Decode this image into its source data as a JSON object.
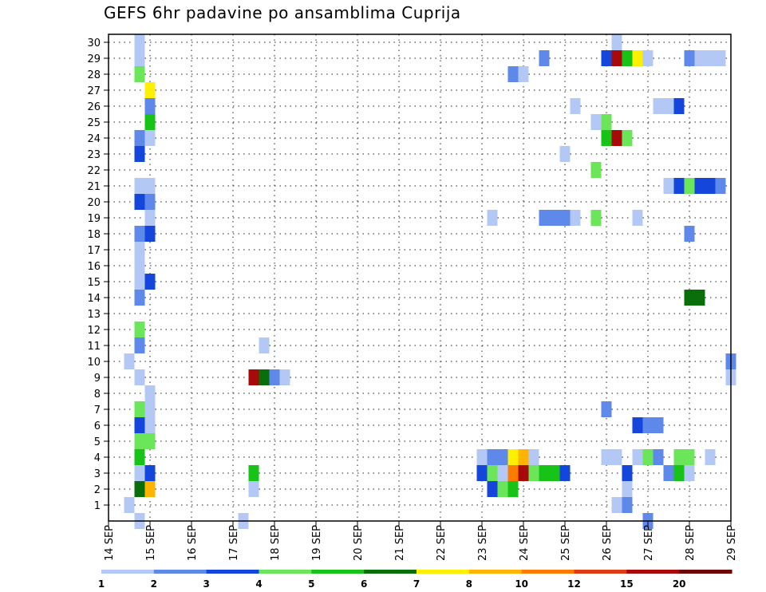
{
  "chart_data": {
    "type": "heatmap",
    "title": "GEFS 6hr padavine po ansamblima Cuprija",
    "y_ticks": [
      "1",
      "2",
      "3",
      "4",
      "5",
      "6",
      "7",
      "8",
      "9",
      "10",
      "11",
      "12",
      "13",
      "14",
      "15",
      "16",
      "17",
      "18",
      "19",
      "20",
      "21",
      "22",
      "23",
      "24",
      "25",
      "26",
      "27",
      "28",
      "29",
      "30"
    ],
    "x_ticks": [
      "14 SEP",
      "15 SEP",
      "16 SEP",
      "17 SEP",
      "18 SEP",
      "19 SEP",
      "20 SEP",
      "21 SEP",
      "22 SEP",
      "23 SEP",
      "24 SEP",
      "25 SEP",
      "26 SEP",
      "27 SEP",
      "28 SEP",
      "29 SEP"
    ],
    "x_range_days": [
      14,
      29
    ],
    "y_range": [
      0,
      30.5
    ],
    "grid": true,
    "colorbar": {
      "labels": [
        "1",
        "2",
        "3",
        "4",
        "5",
        "6",
        "7",
        "8",
        "10",
        "12",
        "15",
        "20"
      ],
      "colors": [
        "#b4c8f5",
        "#5f88eb",
        "#1446dc",
        "#6be55a",
        "#17c317",
        "#0a6e0a",
        "#ffef00",
        "#ffb400",
        "#ff7a00",
        "#dc3c14",
        "#a80a0a",
        "#6e0000"
      ]
    },
    "cells": [
      [
        14.75,
        0,
        0
      ],
      [
        14.5,
        1,
        0
      ],
      [
        15.0,
        2,
        7
      ],
      [
        14.75,
        2,
        5
      ],
      [
        14.75,
        3,
        0
      ],
      [
        15.0,
        3,
        2
      ],
      [
        14.75,
        4,
        4
      ],
      [
        14.75,
        5,
        3
      ],
      [
        15.0,
        5,
        3
      ],
      [
        14.75,
        6,
        2
      ],
      [
        15.0,
        6,
        0
      ],
      [
        14.75,
        7,
        3
      ],
      [
        15.0,
        7,
        0
      ],
      [
        15.0,
        8,
        0
      ],
      [
        14.75,
        9,
        0
      ],
      [
        14.5,
        10,
        0
      ],
      [
        14.75,
        11,
        1
      ],
      [
        14.75,
        12,
        3
      ],
      [
        14.75,
        14,
        1
      ],
      [
        14.75,
        15,
        0
      ],
      [
        15.0,
        15,
        2
      ],
      [
        14.75,
        16,
        0
      ],
      [
        14.75,
        17,
        0
      ],
      [
        14.75,
        18,
        1
      ],
      [
        15.0,
        18,
        2
      ],
      [
        15.0,
        19,
        0
      ],
      [
        14.75,
        20,
        2
      ],
      [
        15.0,
        20,
        1
      ],
      [
        14.75,
        21,
        0
      ],
      [
        15.0,
        21,
        0
      ],
      [
        14.75,
        23,
        2
      ],
      [
        14.75,
        24,
        1
      ],
      [
        15.0,
        24,
        0
      ],
      [
        15.0,
        25,
        4
      ],
      [
        15.0,
        26,
        1
      ],
      [
        15.0,
        27,
        6
      ],
      [
        14.75,
        28,
        3
      ],
      [
        14.75,
        29,
        0
      ],
      [
        14.75,
        30,
        0
      ],
      [
        17.25,
        0,
        0
      ],
      [
        17.5,
        2,
        0
      ],
      [
        17.5,
        3,
        4
      ],
      [
        17.5,
        9,
        10
      ],
      [
        17.75,
        9,
        5
      ],
      [
        17.75,
        11,
        0
      ],
      [
        18.0,
        9,
        1
      ],
      [
        18.25,
        9,
        0
      ],
      [
        23.0,
        3,
        2
      ],
      [
        23.0,
        4,
        0
      ],
      [
        23.25,
        2,
        2
      ],
      [
        23.25,
        3,
        3
      ],
      [
        23.25,
        4,
        1
      ],
      [
        23.5,
        2,
        3
      ],
      [
        23.5,
        3,
        0
      ],
      [
        23.5,
        4,
        1
      ],
      [
        23.75,
        2,
        4
      ],
      [
        23.75,
        3,
        8
      ],
      [
        23.75,
        4,
        6
      ],
      [
        24.0,
        3,
        10
      ],
      [
        24.0,
        4,
        7
      ],
      [
        24.25,
        3,
        3
      ],
      [
        24.25,
        4,
        0
      ],
      [
        24.5,
        3,
        4
      ],
      [
        24.75,
        3,
        4
      ],
      [
        25.0,
        3,
        2
      ],
      [
        23.25,
        19,
        0
      ],
      [
        24.5,
        19,
        1
      ],
      [
        24.75,
        19,
        1
      ],
      [
        25.0,
        19,
        1
      ],
      [
        25.25,
        19,
        0
      ],
      [
        24.5,
        29,
        1
      ],
      [
        23.75,
        28,
        1
      ],
      [
        24.0,
        28,
        0
      ],
      [
        25.25,
        26,
        0
      ],
      [
        25.0,
        23,
        0
      ],
      [
        25.75,
        22,
        3
      ],
      [
        25.75,
        19,
        3
      ],
      [
        25.75,
        25,
        0
      ],
      [
        26.0,
        4,
        0
      ],
      [
        26.25,
        4,
        0
      ],
      [
        26.0,
        7,
        1
      ],
      [
        26.25,
        1,
        0
      ],
      [
        26.5,
        1,
        1
      ],
      [
        26.5,
        3,
        2
      ],
      [
        26.5,
        2,
        0
      ],
      [
        26.75,
        4,
        0
      ],
      [
        27.0,
        4,
        3
      ],
      [
        27.25,
        4,
        1
      ],
      [
        26.75,
        6,
        2
      ],
      [
        27.0,
        6,
        1
      ],
      [
        27.25,
        6,
        1
      ],
      [
        27.0,
        0,
        1
      ],
      [
        26.75,
        19,
        0
      ],
      [
        26.0,
        24,
        4
      ],
      [
        26.25,
        24,
        10
      ],
      [
        26.5,
        24,
        3
      ],
      [
        26.0,
        25,
        3
      ],
      [
        26.0,
        29,
        2
      ],
      [
        26.25,
        29,
        10
      ],
      [
        26.5,
        29,
        4
      ],
      [
        26.75,
        29,
        6
      ],
      [
        27.0,
        29,
        0
      ],
      [
        26.25,
        30,
        0
      ],
      [
        27.25,
        26,
        0
      ],
      [
        27.5,
        26,
        0
      ],
      [
        27.75,
        26,
        2
      ],
      [
        27.5,
        21,
        0
      ],
      [
        27.75,
        21,
        2
      ],
      [
        28.0,
        21,
        3
      ],
      [
        28.25,
        21,
        2
      ],
      [
        28.5,
        21,
        2
      ],
      [
        28.75,
        21,
        1
      ],
      [
        28.0,
        18,
        1
      ],
      [
        28.0,
        14,
        5
      ],
      [
        28.25,
        14,
        5
      ],
      [
        27.5,
        3,
        1
      ],
      [
        27.75,
        3,
        4
      ],
      [
        28.0,
        3,
        0
      ],
      [
        27.75,
        4,
        3
      ],
      [
        28.0,
        4,
        3
      ],
      [
        28.5,
        4,
        0
      ],
      [
        28.0,
        29,
        1
      ],
      [
        28.25,
        29,
        0
      ],
      [
        28.5,
        29,
        0
      ],
      [
        28.75,
        29,
        0
      ],
      [
        29.0,
        10,
        1
      ],
      [
        29.0,
        9,
        0
      ]
    ]
  }
}
